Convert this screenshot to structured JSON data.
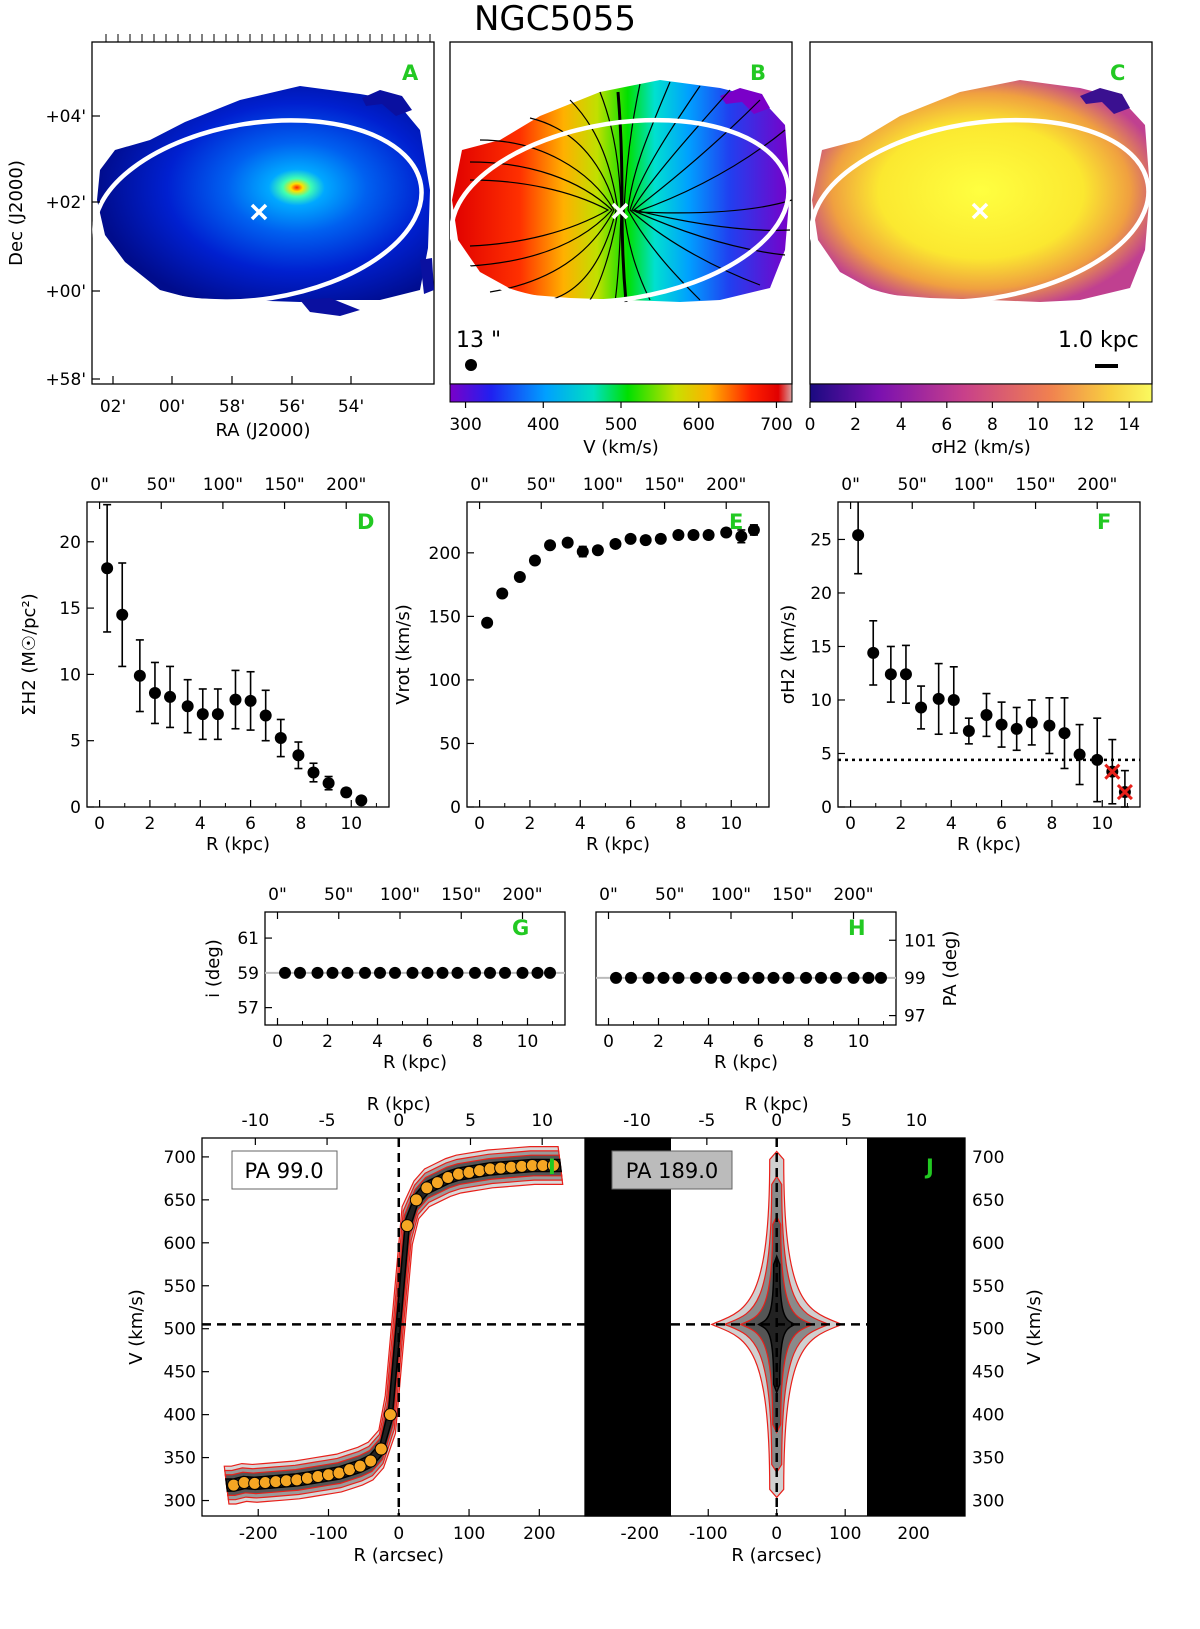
{
  "figure": {
    "title": "NGC5055",
    "colors": {
      "panel_label": "#22c922",
      "orange_marker": "#f5a623",
      "red_contour": "#e8201a",
      "ellipse": "#ffffff"
    }
  },
  "chart_data": [
    {
      "panel": "A",
      "type": "heatmap",
      "xlabel": "RA (J2000)",
      "ylabel": "Dec (J2000)",
      "x_ticks": [
        "02'",
        "00'",
        "58'",
        "56'",
        "54'"
      ],
      "y_ticks": [
        "+04'",
        "+02'",
        "+00'",
        "+58'"
      ],
      "colormap": "jet"
    },
    {
      "panel": "B",
      "type": "heatmap",
      "colorbar_label": "V (km/s)",
      "colorbar_ticks": [
        300,
        400,
        500,
        600,
        700
      ],
      "colorbar_range": [
        280,
        720
      ],
      "beam_label": "13 \"",
      "colormap": "rainbow"
    },
    {
      "panel": "C",
      "type": "heatmap",
      "colorbar_label": "σH2 (km/s)",
      "colorbar_ticks": [
        0,
        2,
        4,
        6,
        8,
        10,
        12,
        14
      ],
      "colorbar_range": [
        0,
        15
      ],
      "scalebar_label": "1.0 kpc",
      "colormap": "plasma"
    },
    {
      "panel": "D",
      "type": "scatter",
      "xlabel": "R (kpc)",
      "ylabel": "ΣH2 (M☉/pc²)",
      "top_ticks": [
        "0\"",
        "50\"",
        "100\"",
        "150\"",
        "200\""
      ],
      "xlim": [
        -0.5,
        11.5
      ],
      "ylim": [
        0,
        23
      ],
      "x_ticks": [
        0,
        2,
        4,
        6,
        8,
        10
      ],
      "y_ticks": [
        0,
        5,
        10,
        15,
        20
      ],
      "x": [
        0.3,
        0.9,
        1.6,
        2.2,
        2.8,
        3.5,
        4.1,
        4.7,
        5.4,
        6.0,
        6.6,
        7.2,
        7.9,
        8.5,
        9.1,
        9.8,
        10.4
      ],
      "y": [
        18.0,
        14.5,
        9.9,
        8.6,
        8.3,
        7.6,
        7.0,
        7.0,
        8.1,
        8.0,
        6.9,
        5.2,
        3.9,
        2.6,
        1.8,
        1.1,
        0.5
      ],
      "yerr": [
        4.8,
        3.9,
        2.7,
        2.3,
        2.3,
        2.0,
        1.9,
        1.9,
        2.2,
        2.2,
        1.9,
        1.4,
        1.0,
        0.7,
        0.5,
        0.3,
        0.15
      ]
    },
    {
      "panel": "E",
      "type": "scatter",
      "xlabel": "R (kpc)",
      "ylabel": "Vrot (km/s)",
      "top_ticks": [
        "0\"",
        "50\"",
        "100\"",
        "150\"",
        "200\""
      ],
      "xlim": [
        -0.5,
        11.5
      ],
      "ylim": [
        0,
        240
      ],
      "x_ticks": [
        0,
        2,
        4,
        6,
        8,
        10
      ],
      "y_ticks": [
        0,
        50,
        100,
        150,
        200
      ],
      "x": [
        0.3,
        0.9,
        1.6,
        2.2,
        2.8,
        3.5,
        4.1,
        4.7,
        5.4,
        6.0,
        6.6,
        7.2,
        7.9,
        8.5,
        9.1,
        9.8,
        10.4,
        10.9
      ],
      "y": [
        145,
        168,
        181,
        194,
        206,
        208,
        201,
        202,
        207,
        211,
        210,
        211,
        214,
        214,
        214,
        216,
        213,
        218
      ],
      "yerr": [
        3,
        2,
        2,
        3,
        2,
        3,
        4,
        3,
        2,
        2,
        3,
        3,
        3,
        3,
        3,
        3,
        5,
        4
      ]
    },
    {
      "panel": "F",
      "type": "scatter",
      "xlabel": "R (kpc)",
      "ylabel": "σH2 (km/s)",
      "top_ticks": [
        "0\"",
        "50\"",
        "100\"",
        "150\"",
        "200\""
      ],
      "xlim": [
        -0.5,
        11.5
      ],
      "ylim": [
        0,
        28.5
      ],
      "x_ticks": [
        0,
        2,
        4,
        6,
        8,
        10
      ],
      "y_ticks": [
        0,
        5,
        10,
        15,
        20,
        25
      ],
      "reference_line": 4.4,
      "x": [
        0.3,
        0.9,
        1.6,
        2.2,
        2.8,
        3.5,
        4.1,
        4.7,
        5.4,
        6.0,
        6.6,
        7.2,
        7.9,
        8.5,
        9.1,
        9.8,
        10.4,
        10.9
      ],
      "y": [
        25.4,
        14.4,
        12.4,
        12.4,
        9.3,
        10.1,
        10.0,
        7.1,
        8.6,
        7.7,
        7.3,
        7.9,
        7.6,
        6.9,
        4.9,
        4.4,
        3.3,
        1.4
      ],
      "yerr": [
        3.6,
        3.0,
        2.6,
        2.7,
        2.0,
        3.3,
        3.1,
        1.2,
        2.0,
        2.1,
        2.0,
        2.1,
        2.6,
        3.3,
        2.8,
        3.9,
        3.0,
        2.0
      ],
      "flagged": [
        false,
        false,
        false,
        false,
        false,
        false,
        false,
        false,
        false,
        false,
        false,
        false,
        false,
        false,
        false,
        false,
        true,
        true
      ]
    },
    {
      "panel": "G",
      "type": "scatter",
      "xlabel": "R (kpc)",
      "ylabel": "i (deg)",
      "top_ticks": [
        "0\"",
        "50\"",
        "100\"",
        "150\"",
        "200\""
      ],
      "xlim": [
        -0.5,
        11.5
      ],
      "ylim": [
        56,
        62.5
      ],
      "x_ticks": [
        0,
        2,
        4,
        6,
        8,
        10
      ],
      "y_ticks": [
        57,
        59,
        61
      ],
      "x": [
        0.3,
        0.9,
        1.6,
        2.2,
        2.8,
        3.5,
        4.1,
        4.7,
        5.4,
        6.0,
        6.6,
        7.2,
        7.9,
        8.5,
        9.1,
        9.8,
        10.4,
        10.9
      ],
      "y": [
        59,
        59,
        59,
        59,
        59,
        59,
        59,
        59,
        59,
        59,
        59,
        59,
        59,
        59,
        59,
        59,
        59,
        59
      ]
    },
    {
      "panel": "H",
      "type": "scatter",
      "xlabel": "R (kpc)",
      "ylabel": "PA (deg)",
      "top_ticks": [
        "0\"",
        "50\"",
        "100\"",
        "150\"",
        "200\""
      ],
      "xlim": [
        -0.5,
        11.5
      ],
      "ylim": [
        96.5,
        102.5
      ],
      "x_ticks": [
        0,
        2,
        4,
        6,
        8,
        10
      ],
      "y_ticks": [
        97,
        99,
        101
      ],
      "x": [
        0.3,
        0.9,
        1.6,
        2.2,
        2.8,
        3.5,
        4.1,
        4.7,
        5.4,
        6.0,
        6.6,
        7.2,
        7.9,
        8.5,
        9.1,
        9.8,
        10.4,
        10.9
      ],
      "y": [
        99,
        99,
        99,
        99,
        99,
        99,
        99,
        99,
        99,
        99,
        99,
        99,
        99,
        99,
        99,
        99,
        99,
        99
      ]
    },
    {
      "panel": "I",
      "type": "line",
      "box_label": "PA 99.0",
      "xlabel": "R (arcsec)",
      "xlabel_top": "R (kpc)",
      "ylabel": "V (km/s)",
      "xlim": [
        -280,
        265
      ],
      "ylim": [
        282,
        722
      ],
      "x_ticks": [
        -200,
        -100,
        0,
        100,
        200
      ],
      "top_ticks": [
        -10,
        -5,
        0,
        5,
        10
      ],
      "y_ticks": [
        300,
        350,
        400,
        450,
        500,
        550,
        600,
        650,
        700
      ],
      "systemic_velocity": 505,
      "rotation_curve_x": [
        -235,
        -220,
        -205,
        -190,
        -175,
        -160,
        -145,
        -130,
        -115,
        -100,
        -85,
        -70,
        -55,
        -40,
        -25,
        -12,
        12,
        25,
        40,
        55,
        70,
        85,
        100,
        115,
        130,
        145,
        160,
        175,
        190,
        205,
        220
      ],
      "rotation_curve_v": [
        318,
        321,
        320,
        321,
        322,
        323,
        324,
        326,
        328,
        330,
        332,
        336,
        340,
        346,
        360,
        400,
        620,
        650,
        664,
        670,
        676,
        680,
        682,
        684,
        686,
        687,
        688,
        689,
        690,
        690,
        690
      ]
    },
    {
      "panel": "J",
      "type": "line",
      "box_label": "PA 189.0",
      "xlabel": "R (arcsec)",
      "xlabel_top": "R (kpc)",
      "ylabel": "V (km/s)",
      "xlim": [
        -280,
        275
      ],
      "ylim": [
        282,
        722
      ],
      "x_ticks": [
        -200,
        -100,
        0,
        100,
        200
      ],
      "top_ticks": [
        -10,
        -5,
        0,
        5,
        10
      ],
      "y_ticks": [
        300,
        350,
        400,
        450,
        500,
        550,
        600,
        650,
        700
      ],
      "systemic_velocity": 505
    }
  ]
}
